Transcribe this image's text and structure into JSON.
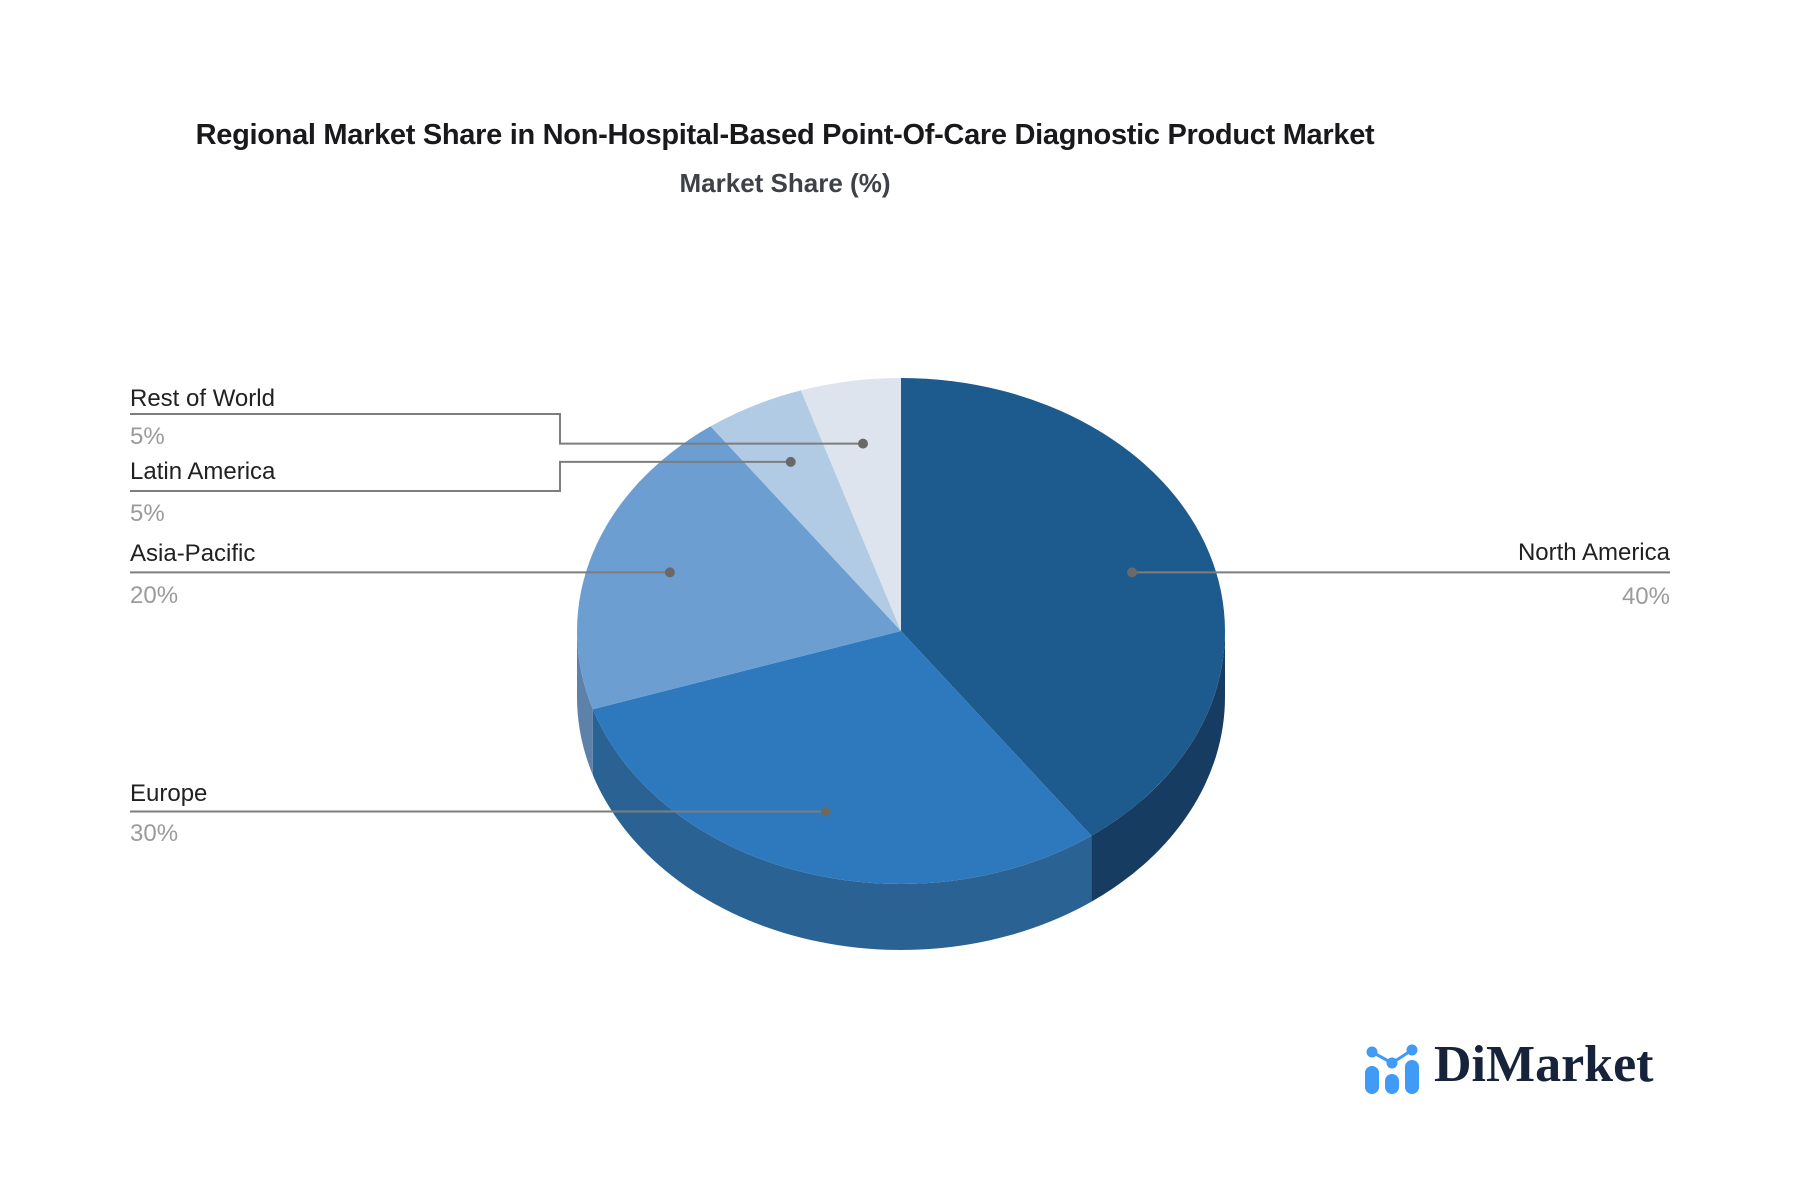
{
  "header": {
    "title": "Regional Market Share in Non-Hospital-Based Point-Of-Care Diagnostic Product Market",
    "subtitle": "Market Share (%)"
  },
  "chart_data": {
    "type": "pie",
    "title": "Regional Market Share in Non-Hospital-Based Point-Of-Care Diagnostic Product Market",
    "subtitle": "Market Share (%)",
    "unit": "%",
    "style": "3d-extruded",
    "direction": "clockwise",
    "start_angle_deg": 0,
    "legend_position": "callout-labels",
    "grid": false,
    "slices": [
      {
        "label": "North America",
        "value": 40,
        "display": "40%",
        "color": "#1d5a8d",
        "side_color": "#163c61",
        "callout_side": "right"
      },
      {
        "label": "Europe",
        "value": 30,
        "display": "30%",
        "color": "#2e79bd",
        "side_color": "#2a6294",
        "callout_side": "left"
      },
      {
        "label": "Asia-Pacific",
        "value": 20,
        "display": "20%",
        "color": "#6d9ed2",
        "side_color": "#5d81a8",
        "callout_side": "left"
      },
      {
        "label": "Latin America",
        "value": 5,
        "display": "5%",
        "color": "#b2cbe4",
        "side_color": "#8fa9c4",
        "callout_side": "left"
      },
      {
        "label": "Rest of World",
        "value": 5,
        "display": "5%",
        "color": "#dde4ee",
        "side_color": "#b5bfcc",
        "callout_side": "left"
      }
    ],
    "callout_line_color": "#7d7d7d",
    "callout_dot_color": "#696969",
    "label_color": "#212121",
    "value_color": "#9b9b9b"
  },
  "logo": {
    "text": "DiMarket",
    "icon": "bar-chart-logo-icon",
    "icon_color": "#3f9bf5",
    "text_color": "#16233b"
  }
}
